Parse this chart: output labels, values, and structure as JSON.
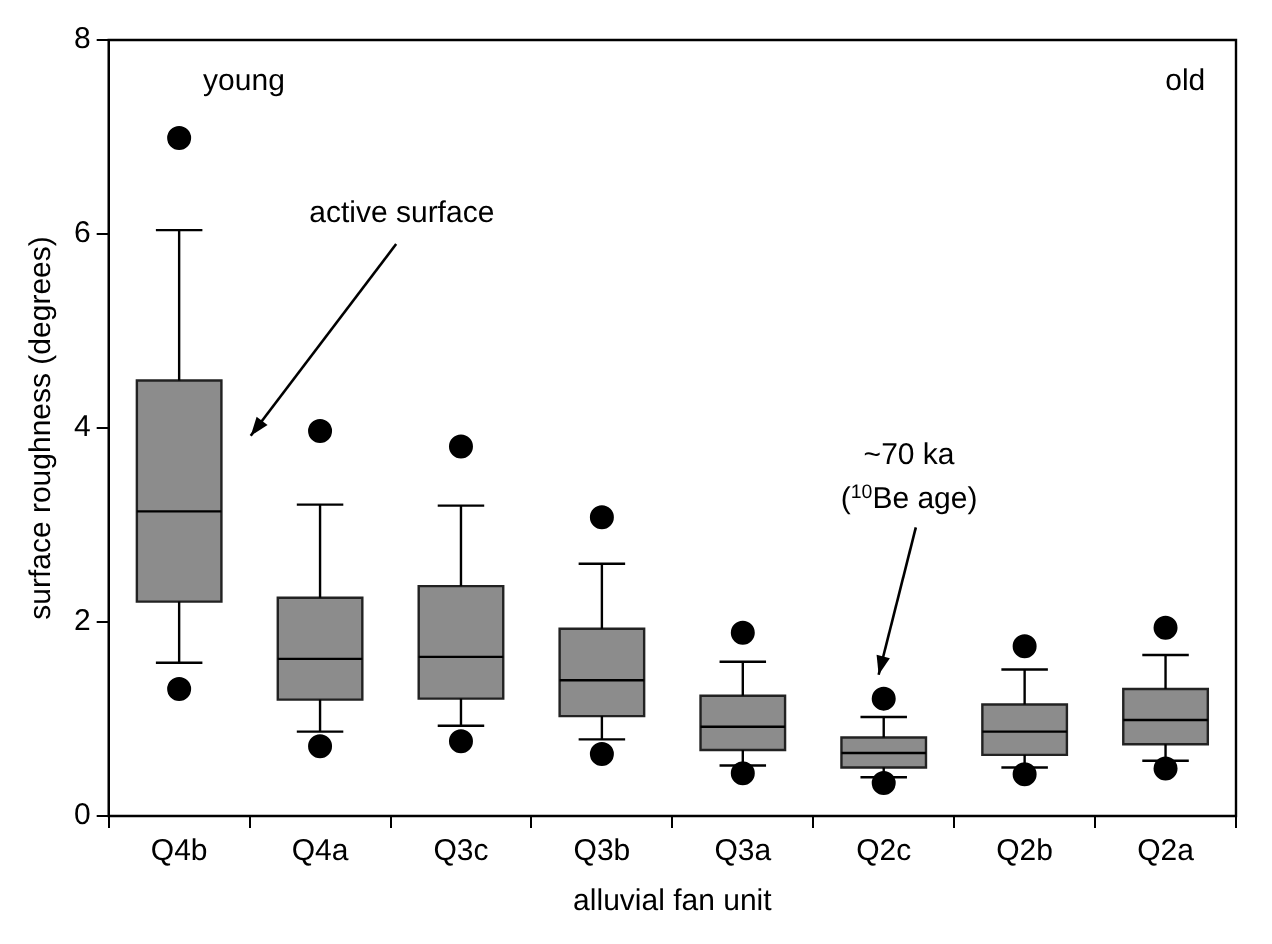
{
  "chart_data": {
    "type": "box",
    "xlabel": "alluvial fan unit",
    "ylabel": "surface roughness (degrees)",
    "categories": [
      "Q4b",
      "Q4a",
      "Q3c",
      "Q3b",
      "Q3a",
      "Q2c",
      "Q2b",
      "Q2a"
    ],
    "color": "#8c8c8c",
    "boxes": [
      {
        "low": 1.58,
        "q1": 2.21,
        "median": 3.14,
        "q3": 4.49,
        "high": 6.04,
        "outliers": [
          6.99,
          1.31
        ]
      },
      {
        "low": 0.87,
        "q1": 1.2,
        "median": 1.62,
        "q3": 2.25,
        "high": 3.21,
        "outliers": [
          3.97,
          0.72
        ]
      },
      {
        "low": 0.93,
        "q1": 1.21,
        "median": 1.64,
        "q3": 2.37,
        "high": 3.2,
        "outliers": [
          3.81,
          0.77
        ]
      },
      {
        "low": 0.79,
        "q1": 1.03,
        "median": 1.4,
        "q3": 1.93,
        "high": 2.6,
        "outliers": [
          3.08,
          0.64
        ]
      },
      {
        "low": 0.52,
        "q1": 0.68,
        "median": 0.92,
        "q3": 1.24,
        "high": 1.59,
        "outliers": [
          1.89,
          0.44
        ]
      },
      {
        "low": 0.4,
        "q1": 0.5,
        "median": 0.65,
        "q3": 0.81,
        "high": 1.02,
        "outliers": [
          1.21,
          0.34
        ]
      },
      {
        "low": 0.5,
        "q1": 0.63,
        "median": 0.87,
        "q3": 1.15,
        "high": 1.51,
        "outliers": [
          1.75,
          0.43
        ]
      },
      {
        "low": 0.57,
        "q1": 0.74,
        "median": 0.99,
        "q3": 1.31,
        "high": 1.66,
        "outliers": [
          1.94,
          0.49
        ]
      }
    ],
    "ylim": [
      0,
      8
    ],
    "yticks": [
      0,
      2,
      4,
      6,
      8
    ],
    "grid": false,
    "legend": false,
    "annotations": [
      "young",
      "old",
      "active surface",
      "~70 ka\n($^{10}$Be age)"
    ]
  }
}
